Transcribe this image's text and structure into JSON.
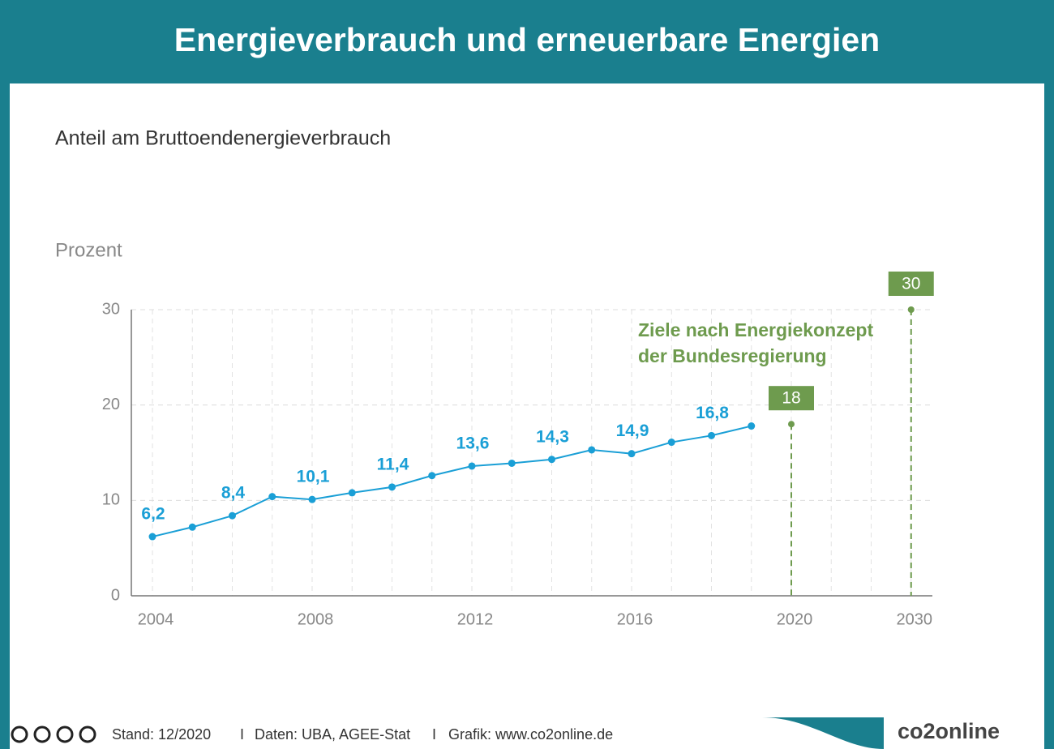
{
  "chart_data": {
    "type": "line",
    "title": "Energieverbrauch und erneuerbare Energien",
    "subtitle": "Anteil am Bruttoendenergieverbrauch",
    "y_label": "Prozent",
    "categories": [
      "2004",
      null,
      null,
      null,
      "2008",
      null,
      null,
      null,
      "2012",
      null,
      null,
      null,
      "2016",
      null,
      null,
      null,
      "2020",
      "2030"
    ],
    "series": [
      {
        "color": "#1a9fd6",
        "values": [
          6.2,
          7.2,
          8.4,
          10.4,
          10.1,
          10.8,
          11.4,
          12.6,
          13.6,
          13.9,
          14.3,
          15.3,
          14.9,
          16.1,
          16.8,
          17.8,
          null,
          null
        ],
        "value_labels": [
          "6,2",
          null,
          "8,4",
          null,
          "10,1",
          null,
          "11,4",
          null,
          "13,6",
          null,
          "14,3",
          null,
          "14,9",
          null,
          "16,8",
          null,
          null,
          null
        ]
      },
      {
        "style": "target",
        "color": "#6e9b4e",
        "values": [
          null,
          null,
          null,
          null,
          null,
          null,
          null,
          null,
          null,
          null,
          null,
          null,
          null,
          null,
          null,
          null,
          18,
          30
        ]
      }
    ],
    "annotation": [
      "Ziele nach Energiekonzept",
      "der Bundesregierung"
    ],
    "ylim": [
      0,
      30
    ],
    "yticks": [
      0,
      10,
      20,
      30
    ],
    "grid": true
  },
  "footer": {
    "items": [
      "Stand: 12/2020",
      "Daten: UBA, AGEE-Stat",
      "Grafik: www.co2online.de"
    ],
    "separator": "I",
    "logo": "co2online"
  }
}
